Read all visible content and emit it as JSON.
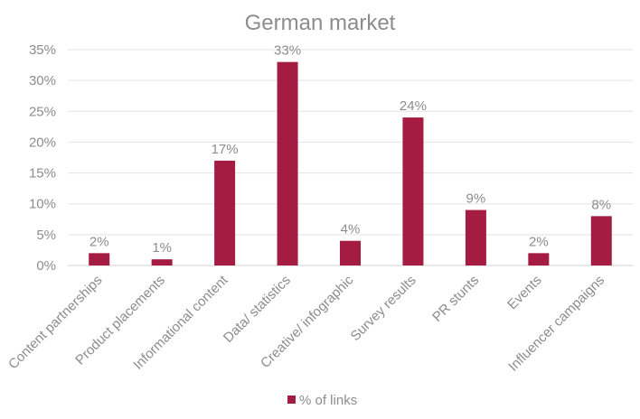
{
  "chart_data": {
    "type": "bar",
    "title": "German market",
    "xlabel": "",
    "ylabel": "",
    "categories": [
      "Content partnerships",
      "Product placements",
      "Informational content",
      "Data/ statistics",
      "Creative/ infographic",
      "Survey results",
      "PR stunts",
      "Events",
      "Influencer campaigns"
    ],
    "series": [
      {
        "name": "% of links",
        "values": [
          2,
          1,
          17,
          33,
          4,
          24,
          9,
          2,
          8
        ],
        "color": "#a51c43"
      }
    ],
    "data_labels": [
      "2%",
      "1%",
      "17%",
      "33%",
      "4%",
      "24%",
      "9%",
      "2%",
      "8%"
    ],
    "ylim": [
      0,
      35
    ],
    "yticks": [
      0,
      5,
      10,
      15,
      20,
      25,
      30,
      35
    ],
    "ytick_labels": [
      "0%",
      "5%",
      "10%",
      "15%",
      "20%",
      "25%",
      "30%",
      "35%"
    ],
    "grid": true,
    "legend": "bottom"
  }
}
